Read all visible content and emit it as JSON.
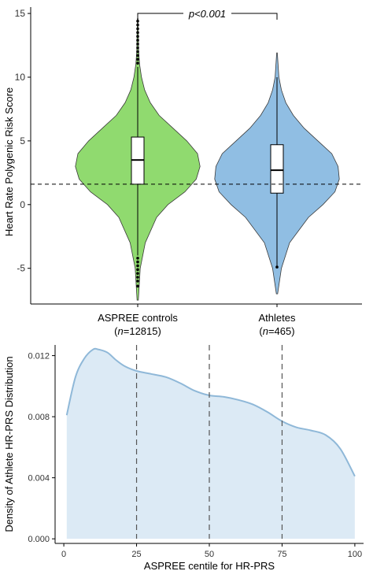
{
  "chart_data": [
    {
      "type": "violin",
      "ylabel": "Heart Rate Polygenic Risk Score",
      "ylim": [
        -7.8,
        15.5
      ],
      "yticks": [
        -5,
        0,
        5,
        10,
        15
      ],
      "ytick_labels": [
        "-5",
        "0",
        "5",
        "10",
        "15"
      ],
      "reference_line_y": 1.6,
      "significance_label": "p<0.001",
      "groups": [
        {
          "name": "ASPREE controls",
          "n_label": "(n=12815)",
          "n_prefix": "(",
          "n_italic": "n",
          "n_suffix": "=12815)",
          "color": "#90DA6F",
          "q1": 1.6,
          "median": 3.5,
          "q3": 5.3,
          "whisker_low": -4.0,
          "whisker_high": 10.8,
          "min": -7.5,
          "max": 14.6,
          "outliers_low": [
            -4.2,
            -4.5,
            -4.8,
            -5.1,
            -5.4,
            -5.7,
            -6.0,
            -6.4
          ],
          "outliers_high": [
            11.1,
            11.4,
            11.7,
            12.0,
            12.3,
            12.6,
            12.9,
            13.2,
            13.5,
            13.8,
            14.1,
            14.4
          ],
          "density": [
            [
              -7.5,
              0.01
            ],
            [
              -5,
              0.04
            ],
            [
              -3,
              0.12
            ],
            [
              -1,
              0.3
            ],
            [
              0,
              0.48
            ],
            [
              1,
              0.75
            ],
            [
              2,
              0.93
            ],
            [
              3,
              0.99
            ],
            [
              4,
              0.95
            ],
            [
              5,
              0.78
            ],
            [
              6,
              0.56
            ],
            [
              7,
              0.34
            ],
            [
              8,
              0.2
            ],
            [
              9,
              0.11
            ],
            [
              10,
              0.06
            ],
            [
              11,
              0.03
            ],
            [
              12,
              0.015
            ],
            [
              14.6,
              0.005
            ]
          ]
        },
        {
          "name": "Athletes",
          "n_label": "(n=465)",
          "n_prefix": "(",
          "n_italic": "n",
          "n_suffix": "=465)",
          "color": "#90BEE3",
          "q1": 0.9,
          "median": 2.7,
          "q3": 4.7,
          "whisker_low": -4.8,
          "whisker_high": 10.0,
          "min": -7.0,
          "max": 11.9,
          "outliers_low": [
            -4.9
          ],
          "outliers_high": [],
          "density": [
            [
              -7,
              0.01
            ],
            [
              -5,
              0.07
            ],
            [
              -3,
              0.2
            ],
            [
              -1,
              0.5
            ],
            [
              0,
              0.73
            ],
            [
              1,
              0.92
            ],
            [
              2,
              0.99
            ],
            [
              3,
              0.97
            ],
            [
              4,
              0.87
            ],
            [
              5,
              0.65
            ],
            [
              6,
              0.43
            ],
            [
              7,
              0.26
            ],
            [
              8,
              0.14
            ],
            [
              9,
              0.07
            ],
            [
              10,
              0.03
            ],
            [
              11.9,
              0.005
            ]
          ]
        }
      ]
    },
    {
      "type": "area",
      "xlabel": "ASPREE centile for HR-PRS",
      "ylabel": "Density of Athlete HR-PRS Distribution",
      "xlim": [
        -3,
        103
      ],
      "ylim": [
        -0.0003,
        0.0127
      ],
      "xticks": [
        0,
        25,
        50,
        75,
        100
      ],
      "xtick_labels": [
        "0",
        "25",
        "50",
        "75",
        "100"
      ],
      "yticks": [
        0,
        0.004,
        0.008,
        0.012
      ],
      "ytick_labels": [
        "0.000",
        "0.004",
        "0.008",
        "0.012"
      ],
      "vlines": [
        25,
        50,
        75
      ],
      "fill_color": "#DCEAF5",
      "line_color": "#8FB8D8",
      "x": [
        1,
        4,
        7,
        10,
        12,
        15,
        18,
        21,
        25,
        30,
        35,
        40,
        45,
        50,
        55,
        60,
        65,
        70,
        75,
        80,
        85,
        90,
        95,
        100
      ],
      "y": [
        0.0081,
        0.0106,
        0.0118,
        0.0124,
        0.0124,
        0.0122,
        0.0117,
        0.0113,
        0.011,
        0.0108,
        0.0106,
        0.0102,
        0.0097,
        0.0094,
        0.0093,
        0.0091,
        0.0088,
        0.0083,
        0.0077,
        0.0073,
        0.0071,
        0.0068,
        0.0059,
        0.0041
      ]
    }
  ]
}
